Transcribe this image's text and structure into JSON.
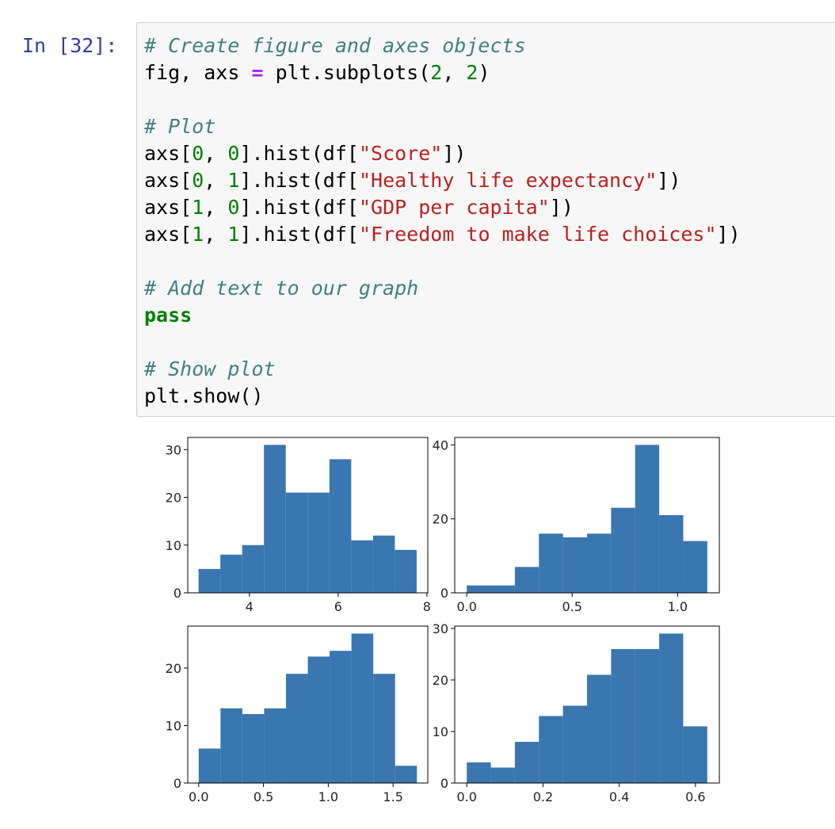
{
  "cell": {
    "prompt": "In [32]:",
    "code": {
      "blocks": [
        [
          [
            {
              "text": "# Create figure and axes objects",
              "kind": "comment"
            }
          ],
          [
            {
              "text": "fig, axs ",
              "kind": "plain"
            },
            {
              "text": "=",
              "kind": "op"
            },
            {
              "text": " plt.subplots(",
              "kind": "plain"
            },
            {
              "text": "2",
              "kind": "number"
            },
            {
              "text": ", ",
              "kind": "plain"
            },
            {
              "text": "2",
              "kind": "number"
            },
            {
              "text": ")",
              "kind": "plain"
            }
          ]
        ],
        [
          [
            {
              "text": "# Plot",
              "kind": "comment"
            }
          ],
          [
            {
              "text": "axs[",
              "kind": "plain"
            },
            {
              "text": "0",
              "kind": "number"
            },
            {
              "text": ", ",
              "kind": "plain"
            },
            {
              "text": "0",
              "kind": "number"
            },
            {
              "text": "].hist(df[",
              "kind": "plain"
            },
            {
              "text": "\"Score\"",
              "kind": "string"
            },
            {
              "text": "])",
              "kind": "plain"
            }
          ],
          [
            {
              "text": "axs[",
              "kind": "plain"
            },
            {
              "text": "0",
              "kind": "number"
            },
            {
              "text": ", ",
              "kind": "plain"
            },
            {
              "text": "1",
              "kind": "number"
            },
            {
              "text": "].hist(df[",
              "kind": "plain"
            },
            {
              "text": "\"Healthy life expectancy\"",
              "kind": "string"
            },
            {
              "text": "])",
              "kind": "plain"
            }
          ],
          [
            {
              "text": "axs[",
              "kind": "plain"
            },
            {
              "text": "1",
              "kind": "number"
            },
            {
              "text": ", ",
              "kind": "plain"
            },
            {
              "text": "0",
              "kind": "number"
            },
            {
              "text": "].hist(df[",
              "kind": "plain"
            },
            {
              "text": "\"GDP per capita\"",
              "kind": "string"
            },
            {
              "text": "])",
              "kind": "plain"
            }
          ],
          [
            {
              "text": "axs[",
              "kind": "plain"
            },
            {
              "text": "1",
              "kind": "number"
            },
            {
              "text": ", ",
              "kind": "plain"
            },
            {
              "text": "1",
              "kind": "number"
            },
            {
              "text": "].hist(df[",
              "kind": "plain"
            },
            {
              "text": "\"Freedom to make life choices\"",
              "kind": "string"
            },
            {
              "text": "])",
              "kind": "plain"
            }
          ]
        ],
        [
          [
            {
              "text": "# Add text to our graph",
              "kind": "comment"
            }
          ],
          [
            {
              "text": "pass",
              "kind": "keyword"
            }
          ]
        ],
        [
          [
            {
              "text": "# Show plot",
              "kind": "comment"
            }
          ],
          [
            {
              "text": "plt.show()",
              "kind": "plain"
            }
          ]
        ]
      ]
    }
  },
  "chart_data": [
    {
      "type": "histogram",
      "color": "#3a76af",
      "bins": [
        2.853,
        3.3446,
        3.8362,
        4.3278,
        4.8194,
        5.311,
        5.8026,
        6.2942,
        6.7858,
        7.2774,
        7.769
      ],
      "values": [
        5,
        8,
        10,
        31,
        21,
        21,
        28,
        11,
        12,
        9
      ],
      "xlim": [
        2.61,
        8.02
      ],
      "xticks": [
        4,
        6,
        8
      ],
      "ylim": [
        0,
        32.55
      ],
      "yticks": [
        0,
        10,
        20,
        30
      ]
    },
    {
      "type": "histogram",
      "color": "#3a76af",
      "bins": [
        0,
        0.1141,
        0.2282,
        0.3423,
        0.4564,
        0.5705,
        0.6846,
        0.7987,
        0.9128,
        1.0269,
        1.141
      ],
      "values": [
        2,
        2,
        7,
        16,
        15,
        16,
        23,
        40,
        21,
        14
      ],
      "xlim": [
        -0.057,
        1.198
      ],
      "xticks": [
        {
          "value": 0,
          "label": "0.0"
        },
        0.5,
        {
          "value": 1,
          "label": "1.0"
        }
      ],
      "ylim": [
        0,
        42
      ],
      "yticks": [
        0,
        20,
        40
      ]
    },
    {
      "type": "histogram",
      "color": "#3a76af",
      "bins": [
        0,
        0.1684,
        0.3368,
        0.5052,
        0.6736,
        0.842,
        1.0104,
        1.1788,
        1.3472,
        1.5156,
        1.684
      ],
      "values": [
        6,
        13,
        12,
        13,
        19,
        22,
        23,
        26,
        19,
        3
      ],
      "xlim": [
        -0.0842,
        1.768
      ],
      "xticks": [
        {
          "value": 0,
          "label": "0.0"
        },
        0.5,
        {
          "value": 1,
          "label": "1.0"
        },
        1.5
      ],
      "ylim": [
        0,
        27.3
      ],
      "yticks": [
        0,
        10,
        20
      ]
    },
    {
      "type": "histogram",
      "color": "#3a76af",
      "bins": [
        0,
        0.0631,
        0.1262,
        0.1893,
        0.2524,
        0.3155,
        0.3786,
        0.4417,
        0.5048,
        0.5679,
        0.631
      ],
      "values": [
        4,
        3,
        8,
        13,
        15,
        21,
        26,
        26,
        29,
        11
      ],
      "xlim": [
        -0.0316,
        0.6626
      ],
      "xticks": [
        {
          "value": 0,
          "label": "0.0"
        },
        0.2,
        0.4,
        0.6
      ],
      "ylim": [
        0,
        30.45
      ],
      "yticks": [
        0,
        10,
        20,
        30
      ]
    }
  ]
}
